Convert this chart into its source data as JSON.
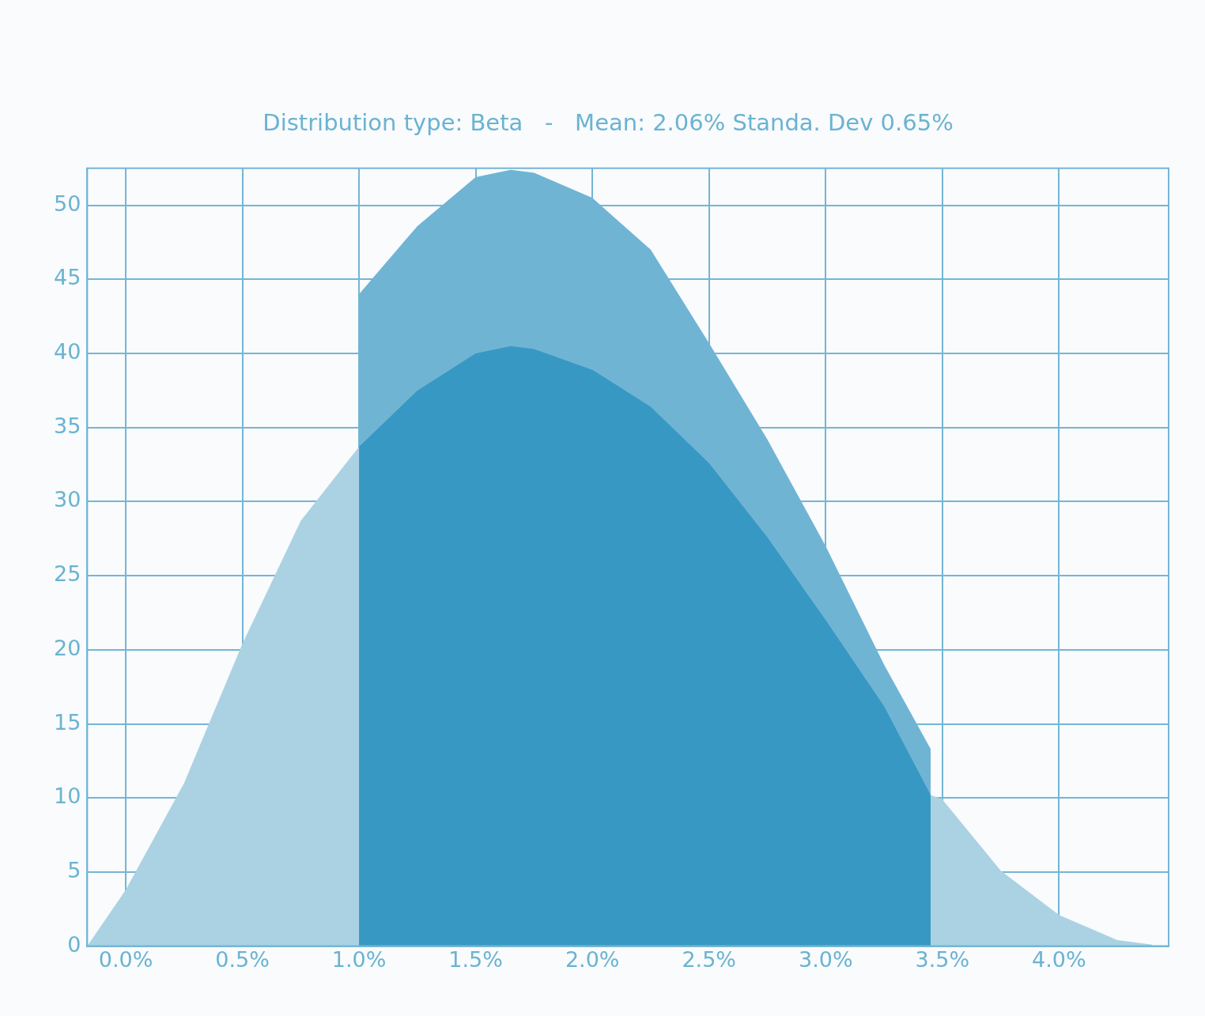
{
  "chart_data": {
    "type": "area",
    "title": "Distribution type: Beta   -   Mean: 2.06% Standa. Dev 0.65%",
    "xlim": [
      -0.165,
      4.47
    ],
    "ylim": [
      0,
      52.5
    ],
    "xticks": [
      {
        "value": 0,
        "label": "0.0%"
      },
      {
        "value": 0.5,
        "label": "0.5%"
      },
      {
        "value": 1,
        "label": "1.0%"
      },
      {
        "value": 1.5,
        "label": "1.5%"
      },
      {
        "value": 2,
        "label": "2.0%"
      },
      {
        "value": 2.5,
        "label": "2.5%"
      },
      {
        "value": 3,
        "label": "3.0%"
      },
      {
        "value": 3.5,
        "label": "3.5%"
      },
      {
        "value": 4,
        "label": "4.0%"
      }
    ],
    "yticks": [
      0,
      5,
      10,
      15,
      20,
      25,
      30,
      35,
      40,
      45,
      50
    ],
    "grid": true,
    "legend": false,
    "marker": "none",
    "series": [
      {
        "color": "#aad2e3",
        "x": [
          -0.165,
          0,
          0.25,
          0.5,
          0.75,
          1,
          1.25,
          1.5,
          1.65,
          1.75,
          2,
          2.25,
          2.5,
          2.75,
          3,
          3.25,
          3.45,
          3.5,
          3.75,
          4,
          4.25,
          4.4
        ],
        "values": [
          0,
          3.8,
          11,
          20.4,
          28.7,
          33.7,
          null,
          null,
          null,
          null,
          null,
          null,
          null,
          null,
          null,
          null,
          10.2,
          9.9,
          5.1,
          2.1,
          0.4,
          0.1
        ]
      },
      {
        "color": "#70b4d4",
        "x": [
          1,
          1,
          1.25,
          1.5,
          1.65,
          1.75,
          2,
          2.25,
          2.5,
          2.75,
          3,
          3.25,
          3.45,
          3.45
        ],
        "values": [
          0,
          44,
          48.6,
          51.9,
          52.4,
          52.2,
          50.5,
          47,
          40.7,
          34.2,
          27,
          19,
          13.3,
          0
        ]
      },
      {
        "color": "#3798c3",
        "x": [
          1,
          1,
          1.25,
          1.5,
          1.65,
          1.75,
          2,
          2.25,
          2.5,
          2.75,
          3,
          3.25,
          3.45,
          3.45
        ],
        "values": [
          0,
          33.7,
          37.5,
          40,
          40.5,
          40.3,
          38.9,
          36.4,
          32.6,
          27.6,
          22,
          16.2,
          10.2,
          0
        ]
      }
    ]
  }
}
